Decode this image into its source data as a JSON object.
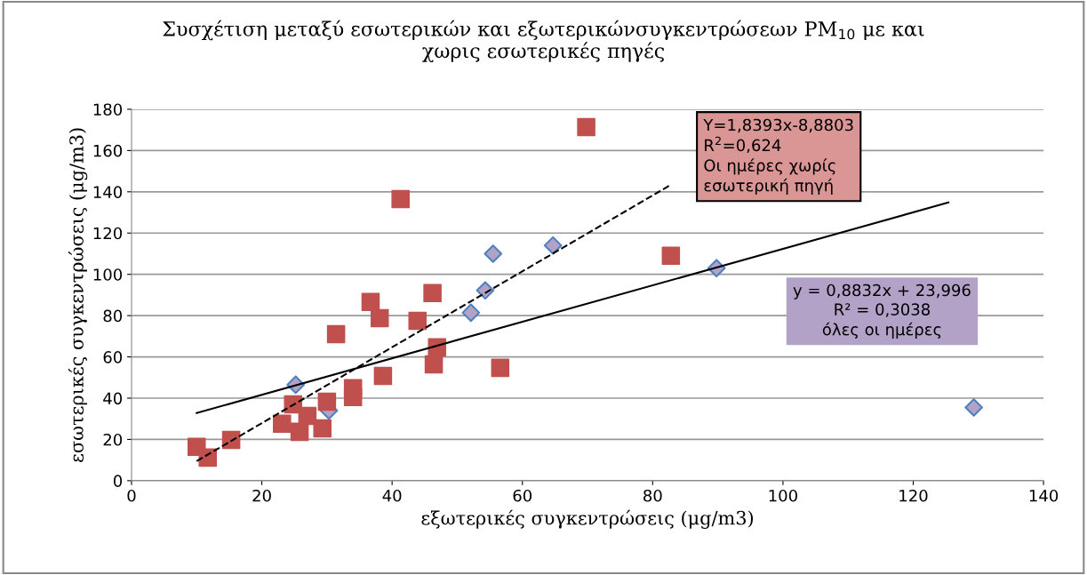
{
  "chart_data": {
    "type": "scatter",
    "title": "Συσχέτιση μεταξύ εσωτερικών και εξωτερικώνσυγκεντρώσεων PM$_{10}$ με και\nχωρις εσωτερικές πηγές",
    "xlabel": "εξωτερικές συγκεντρώσεις (μg/m3)",
    "ylabel": "εσωτερικές συγκεντρώσεις (μg/m3)",
    "xlim": [
      0,
      140
    ],
    "xticks": [
      0,
      20,
      40,
      60,
      80,
      100,
      120,
      140
    ],
    "ylim": [
      0,
      180
    ],
    "yticks": [
      0,
      20,
      40,
      60,
      80,
      100,
      120,
      140,
      160,
      180
    ],
    "grid": "y",
    "series": [
      {
        "marker": "diamond",
        "color": "#b3a2c7",
        "x": [
          25.2,
          30.3,
          52.1,
          54.3,
          55.5,
          64.7,
          89.8,
          129.3
        ],
        "values": [
          46.5,
          34,
          81.4,
          92.2,
          110,
          114,
          103,
          35.5
        ]
      },
      {
        "marker": "square",
        "color": "#c0504d",
        "x": [
          10,
          11.7,
          15.3,
          23.1,
          24.8,
          25.8,
          27,
          29.3,
          30,
          34,
          34,
          31.4,
          36.7,
          38.1,
          38.6,
          43.9,
          46.2,
          46.9,
          46.4,
          56.6,
          69.8,
          41.3,
          82.8
        ],
        "values": [
          16.4,
          11.2,
          19.8,
          27.6,
          37,
          23.7,
          31.4,
          25.4,
          38.3,
          44.8,
          40.5,
          71,
          86.6,
          78.8,
          50.8,
          77.5,
          90.9,
          64.6,
          56.4,
          54.7,
          171.4,
          136.5,
          109
        ]
      },
      {
        "type": "line",
        "line_style": "solid",
        "color": "#000000",
        "x": [
          10,
          125.4
        ],
        "values": [
          32.8,
          134.8
        ]
      },
      {
        "type": "line",
        "line_style": "dashed",
        "color": "#000000",
        "x": [
          10,
          82.8
        ],
        "values": [
          9.5,
          143.4
        ]
      }
    ],
    "annotations": [
      "Y=1,8393x-8,8803\nR$^{2}$=0,624\nΟι ημέρες χωρίς\nεσωτερική πηγή",
      "y = 0,8832x + 23,996\nR² = 0,3038\nόλες οι ημέρες"
    ]
  }
}
